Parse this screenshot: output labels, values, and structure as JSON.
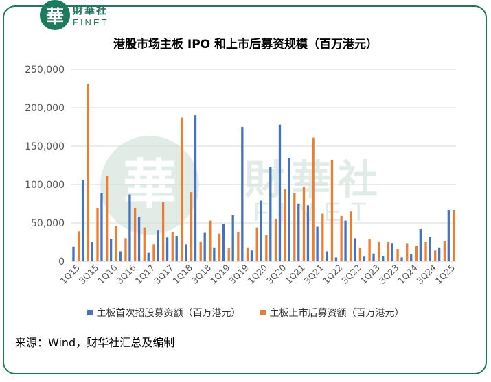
{
  "logo": {
    "glyph": "華",
    "cn": "財華社",
    "en": "FINET",
    "color": "#1e7a5c"
  },
  "watermark": {
    "glyph": "華",
    "cn": "財華社",
    "en": "FINET"
  },
  "title": "港股市场主板 IPO 和上市后募资规模（百万港元）",
  "source": "来源：Wind，财华社汇总及编制",
  "chart_data": {
    "type": "bar",
    "title": "港股市场主板 IPO 和上市后募资规模（百万港元）",
    "ylim": [
      0,
      250000
    ],
    "yticks": [
      "0",
      "50,000",
      "100,000",
      "150,000",
      "200,000",
      "250,000"
    ],
    "ytick_values": [
      0,
      50000,
      100000,
      150000,
      200000,
      250000
    ],
    "grid": true,
    "legend_position": "bottom",
    "categories": [
      "1Q15",
      "2Q15",
      "3Q15",
      "4Q15",
      "1Q16",
      "2Q16",
      "3Q16",
      "4Q16",
      "1Q17",
      "2Q17",
      "3Q17",
      "4Q17",
      "1Q18",
      "2Q18",
      "3Q18",
      "4Q18",
      "1Q19",
      "2Q19",
      "3Q19",
      "4Q19",
      "1Q20",
      "2Q20",
      "3Q20",
      "4Q20",
      "1Q21",
      "2Q21",
      "3Q21",
      "4Q21",
      "1Q22",
      "2Q22",
      "3Q22",
      "4Q22",
      "1Q23",
      "2Q23",
      "3Q23",
      "4Q23",
      "1Q24",
      "2Q24",
      "3Q24",
      "4Q24",
      "1Q25"
    ],
    "xtick_labels": [
      "1Q15",
      "",
      "3Q15",
      "",
      "1Q16",
      "",
      "3Q16",
      "",
      "1Q17",
      "",
      "3Q17",
      "",
      "1Q18",
      "",
      "3Q18",
      "",
      "1Q19",
      "",
      "3Q19",
      "",
      "1Q20",
      "",
      "3Q20",
      "",
      "1Q21",
      "",
      "3Q21",
      "",
      "1Q22",
      "",
      "3Q22",
      "",
      "1Q23",
      "",
      "3Q23",
      "",
      "1Q24",
      "",
      "3Q24",
      "",
      "1Q25"
    ],
    "series": [
      {
        "name": "主板首次招股募资额（百万港元）",
        "color": "#4472c4",
        "values": [
          19000,
          106000,
          25000,
          89000,
          29000,
          13000,
          87000,
          58000,
          11000,
          40000,
          31000,
          33000,
          22000,
          190000,
          37000,
          18000,
          49000,
          60000,
          175000,
          14000,
          79000,
          123000,
          178000,
          134000,
          75000,
          73000,
          45000,
          13000,
          5000,
          53000,
          30000,
          6000,
          10000,
          7000,
          23000,
          5000,
          9000,
          42000,
          32000,
          18000,
          67000
        ]
      },
      {
        "name": "主板上市后募资额（百万港元）",
        "color": "#ed7d31",
        "values": [
          39000,
          231000,
          69000,
          111000,
          46000,
          30000,
          69000,
          44000,
          22000,
          77000,
          38000,
          187000,
          90000,
          25000,
          53000,
          36000,
          17000,
          38000,
          18000,
          44000,
          34000,
          55000,
          94000,
          89000,
          97000,
          161000,
          62000,
          132000,
          59000,
          65000,
          17000,
          29000,
          25000,
          25000,
          16000,
          23000,
          20000,
          25000,
          14000,
          26000,
          67000
        ]
      }
    ]
  }
}
